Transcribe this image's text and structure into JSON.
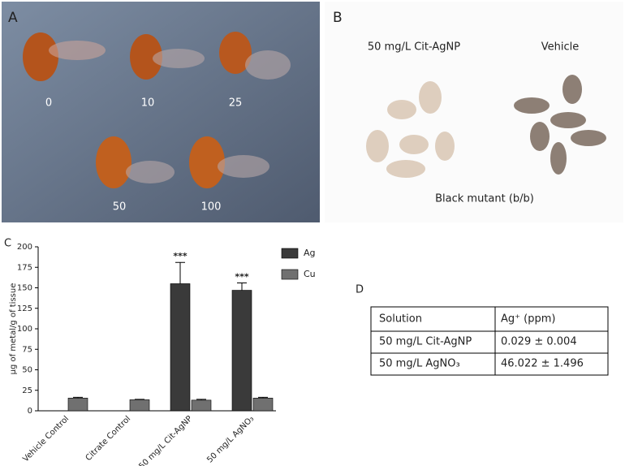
{
  "panel_a": {
    "label": "A",
    "doses": [
      "0",
      "10",
      "25",
      "50",
      "100"
    ]
  },
  "panel_b": {
    "label": "B",
    "groups": [
      "50 mg/L Cit-AgNP",
      "Vehicle"
    ],
    "caption": "Black mutant (b/b)"
  },
  "chart_data": {
    "type": "bar",
    "panel_label": "C",
    "ylabel": "µg of metal/g of tissue",
    "categories": [
      "Vehicle Control",
      "Citrate Control",
      "50 mg/L Cit-AgNP",
      "50 mg/L AgNO₃"
    ],
    "series": [
      {
        "name": "Ag",
        "color": "#3a3a3a",
        "values": [
          null,
          null,
          155,
          147
        ],
        "errors": [
          null,
          null,
          26,
          9
        ],
        "significance": [
          null,
          null,
          "***",
          "***"
        ]
      },
      {
        "name": "Cu",
        "color": "#707070",
        "values": [
          15.5,
          13.5,
          13,
          15.5
        ],
        "errors": [
          1,
          0.5,
          1,
          1
        ]
      }
    ],
    "ylim": [
      0,
      200
    ],
    "yticks": [
      0,
      25,
      50,
      75,
      100,
      125,
      150,
      175,
      200
    ]
  },
  "panel_d": {
    "label": "D",
    "header": [
      "Solution",
      "Ag⁺ (ppm)"
    ],
    "rows": [
      [
        "50 mg/L Cit-AgNP",
        "0.029 ± 0.004"
      ],
      [
        "50 mg/L AgNO₃",
        "46.022 ± 1.496"
      ]
    ]
  }
}
